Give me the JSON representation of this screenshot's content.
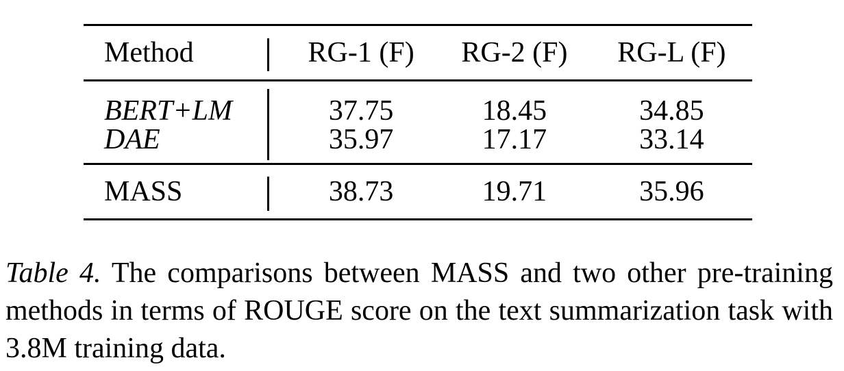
{
  "table": {
    "header": {
      "method": "Method",
      "cols": [
        "RG-1 (F)",
        "RG-2 (F)",
        "RG-L (F)"
      ]
    },
    "baselines": [
      {
        "method": "BERT+LM",
        "values": [
          "37.75",
          "18.45",
          "34.85"
        ]
      },
      {
        "method": "DAE",
        "values": [
          "35.97",
          "17.17",
          "33.14"
        ]
      }
    ],
    "ours": {
      "method": "MASS",
      "values": [
        "38.73",
        "19.71",
        "35.96"
      ]
    }
  },
  "caption": {
    "label": "Table 4.",
    "text": "The comparisons between MASS and two other pre-training methods in terms of ROUGE score on the text summarization task with 3.8M training data."
  }
}
